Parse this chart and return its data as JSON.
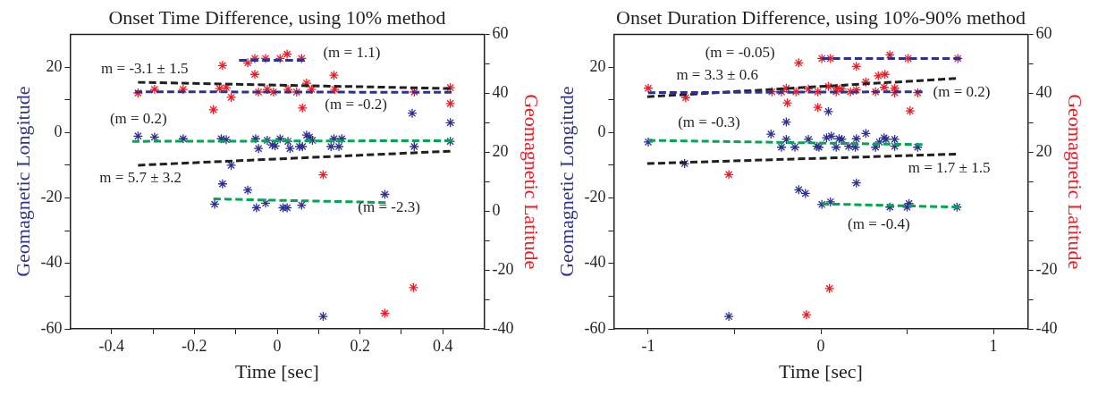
{
  "chart_data": [
    {
      "type": "scatter",
      "title": "Onset Time Difference, using 10% method",
      "xlabel": "Time [sec]",
      "ylabel": "Geomagnetic Longitude",
      "y2label": "Geomagnetic Latitude",
      "marker": "cross",
      "grid": false,
      "legend": false,
      "xlim": [
        -0.5,
        0.5
      ],
      "xticks": [
        -0.4,
        {
          "value": -0.3,
          "label": null
        },
        -0.2,
        {
          "value": -0.1,
          "label": null
        },
        0,
        {
          "value": 0.1,
          "label": null
        },
        0.2,
        {
          "value": 0.3,
          "label": null
        },
        0.4
      ],
      "ylim": [
        -60,
        30
      ],
      "yticks": [
        -60,
        {
          "value": -50,
          "label": null
        },
        -40,
        {
          "value": -30,
          "label": null
        },
        -20,
        {
          "value": -10,
          "label": null
        },
        0,
        {
          "value": 10,
          "label": null
        },
        20
      ],
      "y2lim": [
        -40,
        60
      ],
      "y2ticks": [
        -40,
        {
          "value": -30,
          "label": null
        },
        -20,
        {
          "value": -10,
          "label": null
        },
        0,
        {
          "value": 10,
          "label": null
        },
        20,
        {
          "value": 30,
          "label": null
        },
        40,
        {
          "value": 50,
          "label": null
        },
        60
      ],
      "series": [
        {
          "type": "scatter",
          "color": "#2e3192",
          "x": [
            -0.336,
            -0.296,
            -0.227,
            -0.135,
            -0.123,
            -0.111,
            -0.052,
            -0.045,
            -0.024,
            -0.012,
            -0.005,
            0.007,
            0.026,
            0.031,
            0.054,
            0.061,
            0.071,
            0.078,
            0.085,
            0.13,
            0.137,
            0.149,
            0.156,
            0.326,
            0.331,
            0.418,
            0.418,
            -0.132,
            -0.071,
            -0.151,
            -0.05,
            -0.028,
            0.014,
            0.024,
            0.059,
            0.26,
            0.111
          ],
          "values": [
            -1.1,
            -1.4,
            -1.9,
            -1.9,
            -2.2,
            -10,
            -1.9,
            -4.9,
            -2.4,
            -3.8,
            -4.1,
            -1.9,
            -2.7,
            -4.9,
            -4.3,
            -4.3,
            -0.8,
            -1.4,
            -2.4,
            -4.3,
            -1.9,
            -4.3,
            -1.9,
            5.9,
            -4.3,
            3,
            -2.7,
            -15.7,
            -17.6,
            -21.9,
            -23,
            -21.6,
            -23,
            -23,
            -22.2,
            -18.9,
            -56.2
          ]
        },
        {
          "type": "scatter",
          "color": "#ed1c24",
          "axis": "y2",
          "x": [
            -0.336,
            -0.296,
            -0.227,
            -0.154,
            -0.132,
            -0.139,
            -0.123,
            -0.111,
            -0.071,
            -0.054,
            -0.054,
            -0.028,
            -0.045,
            -0.024,
            -0.009,
            0.007,
            0.024,
            0.026,
            0.047,
            0.059,
            0.061,
            0.071,
            0.083,
            0.137,
            0.139,
            0.331,
            0.418,
            0.418,
            0.111,
            0.329,
            0.26
          ],
          "values": [
            40.1,
            41.3,
            41.3,
            34.4,
            49.4,
            41.6,
            41.9,
            38.6,
            50.3,
            51.8,
            46.4,
            51.8,
            40.4,
            41.3,
            40.4,
            51.8,
            53.3,
            41.3,
            40.4,
            51.8,
            35,
            43.4,
            41.3,
            46.1,
            41.3,
            40.4,
            41.9,
            36.5,
            12.3,
            -26,
            -34.7
          ]
        },
        {
          "type": "line",
          "color": "#231f20",
          "axis": "y2",
          "line_style": "dashed",
          "marker": "none",
          "x": [
            -0.336,
            0.418
          ],
          "values": [
            43.7,
            41.6
          ]
        },
        {
          "type": "line",
          "color": "#231f20",
          "line_style": "dashed",
          "marker": "none",
          "x": [
            -0.336,
            0.418
          ],
          "values": [
            -10,
            -5.7
          ]
        },
        {
          "type": "line",
          "color": "#2e3192",
          "axis": "y2",
          "line_style": "dashed",
          "marker": "none",
          "x": [
            -0.092,
            0.066
          ],
          "values": [
            51.2,
            51.2
          ]
        },
        {
          "type": "line",
          "color": "#2e3192",
          "axis": "y2",
          "line_style": "dashed",
          "marker": "none",
          "x": [
            -0.343,
            0.421
          ],
          "values": [
            40.5,
            40.3
          ]
        },
        {
          "type": "line",
          "color": "#00a651",
          "line_style": "dashed",
          "marker": "none",
          "x": [
            -0.35,
            0.421
          ],
          "values": [
            -2.7,
            -2.5
          ]
        },
        {
          "type": "line",
          "color": "#00a651",
          "line_style": "dashed",
          "marker": "none",
          "x": [
            -0.154,
            0.262
          ],
          "values": [
            -20.3,
            -21.4
          ]
        }
      ],
      "annotations": [
        "(m = 1.1)",
        "m = -3.1 ± 1.5",
        "(m = -0.2)",
        "(m = 0.2)",
        "m = 5.7 ± 3.2",
        "(m = -2.3)"
      ]
    },
    {
      "type": "scatter",
      "title": "Onset Duration Difference, using 10%-90% method",
      "xlabel": "Time [sec]",
      "ylabel": "Geomagnetic Longitude",
      "y2label": "Geomagnetic Latitude",
      "marker": "cross",
      "grid": false,
      "legend": false,
      "xlim": [
        -1.2,
        1.2
      ],
      "xticks": [
        -1,
        {
          "value": -0.5,
          "label": null
        },
        0,
        {
          "value": 0.5,
          "label": null
        },
        1
      ],
      "ylim": [
        -60,
        30
      ],
      "yticks": [
        -60,
        {
          "value": -50,
          "label": null
        },
        -40,
        {
          "value": -30,
          "label": null
        },
        -20,
        {
          "value": -10,
          "label": null
        },
        0,
        {
          "value": 10,
          "label": null
        },
        20
      ],
      "y2lim": [
        -40,
        60
      ],
      "y2ticks": [
        -40,
        {
          "value": -30,
          "label": null
        },
        -20,
        {
          "value": -10,
          "label": null
        },
        {
          "value": 0,
          "label": null
        },
        {
          "value": 10,
          "label": null
        },
        20,
        {
          "value": 30,
          "label": null
        },
        40,
        {
          "value": 50,
          "label": null
        },
        60
      ],
      "series": [
        {
          "type": "scatter",
          "color": "#2e3192",
          "x": [
            -1,
            -0.789,
            -0.289,
            -0.228,
            -0.2,
            -0.2,
            -0.15,
            -0.072,
            -0.022,
            -0.011,
            0.033,
            0.044,
            0.061,
            0.089,
            0.106,
            0.122,
            0.161,
            0.2,
            0.206,
            0.261,
            0.317,
            0.339,
            0.367,
            0.378,
            0.428,
            0.428,
            0.561,
            -0.128,
            -0.089,
            0.206,
            0.006,
            0.056,
            0.4,
            0.5,
            0.511,
            0.789,
            -0.533
          ],
          "values": [
            -2.9,
            -9.5,
            -0.5,
            -4.5,
            3.2,
            -2.1,
            -4.5,
            -2.1,
            -4.2,
            -4.5,
            -1.6,
            6.4,
            -1.1,
            -4.5,
            -1.9,
            -2.1,
            -4.2,
            -4.5,
            -1.9,
            -0.3,
            -4.5,
            -2.9,
            -1.6,
            -2.1,
            -2.1,
            -4.2,
            -4.5,
            -17.5,
            -18.6,
            -15.4,
            -22,
            -21.2,
            -22.8,
            -22.8,
            -21.7,
            -22.8,
            -56.2
          ]
        },
        {
          "type": "scatter",
          "color": "#ed1c24",
          "axis": "y2",
          "x": [
            -1,
            -0.783,
            -0.533,
            -0.283,
            -0.228,
            -0.2,
            -0.194,
            -0.144,
            -0.128,
            -0.072,
            -0.017,
            -0.017,
            0.006,
            0.056,
            0.044,
            0.089,
            0.094,
            0.122,
            0.172,
            0.206,
            0.206,
            0.261,
            0.317,
            0.333,
            0.372,
            0.367,
            0.4,
            0.428,
            0.428,
            0.506,
            0.517,
            0.561,
            0.794,
            -0.083,
            0.05
          ],
          "values": [
            41.7,
            38.5,
            12.4,
            40.5,
            40.5,
            41.7,
            36.7,
            40.5,
            50.3,
            41.4,
            40.5,
            35.2,
            51.8,
            51.8,
            42.3,
            40.5,
            41.7,
            41.4,
            40.5,
            49.1,
            41.1,
            43.8,
            40.5,
            45.9,
            46.4,
            42,
            53,
            41.7,
            40.2,
            51.8,
            34,
            40.2,
            51.8,
            -35.2,
            -26.3
          ]
        },
        {
          "type": "line",
          "color": "#2e3192",
          "axis": "y2",
          "line_style": "dashed",
          "marker": "none",
          "x": [
            0.006,
            0.811
          ],
          "values": [
            51.8,
            51.8
          ]
        },
        {
          "type": "line",
          "color": "#2e3192",
          "axis": "y2",
          "line_style": "dashed",
          "marker": "none",
          "x": [
            -1,
            0.589
          ],
          "values": [
            40.2,
            40.5
          ]
        },
        {
          "type": "line",
          "color": "#231f20",
          "axis": "y2",
          "line_style": "dashed",
          "marker": "none",
          "x": [
            -1.006,
            0.783
          ],
          "values": [
            38.8,
            45
          ]
        },
        {
          "type": "line",
          "color": "#231f20",
          "line_style": "dashed",
          "marker": "none",
          "x": [
            -1.006,
            0.783
          ],
          "values": [
            -9.5,
            -6.6
          ]
        },
        {
          "type": "line",
          "color": "#00a651",
          "line_style": "dashed",
          "marker": "none",
          "x": [
            -1,
            0.589
          ],
          "values": [
            -2.4,
            -3.7
          ]
        },
        {
          "type": "line",
          "color": "#00a651",
          "line_style": "dashed",
          "marker": "none",
          "x": [
            0.006,
            0.8
          ],
          "values": [
            -21.8,
            -22.8
          ]
        }
      ],
      "annotations": [
        "(m = -0.05)",
        "m = 3.3 ± 0.6",
        "(m = 0.2)",
        "(m = -0.3)",
        "m = 1.7 ± 1.5",
        "(m = -0.4)"
      ]
    }
  ]
}
